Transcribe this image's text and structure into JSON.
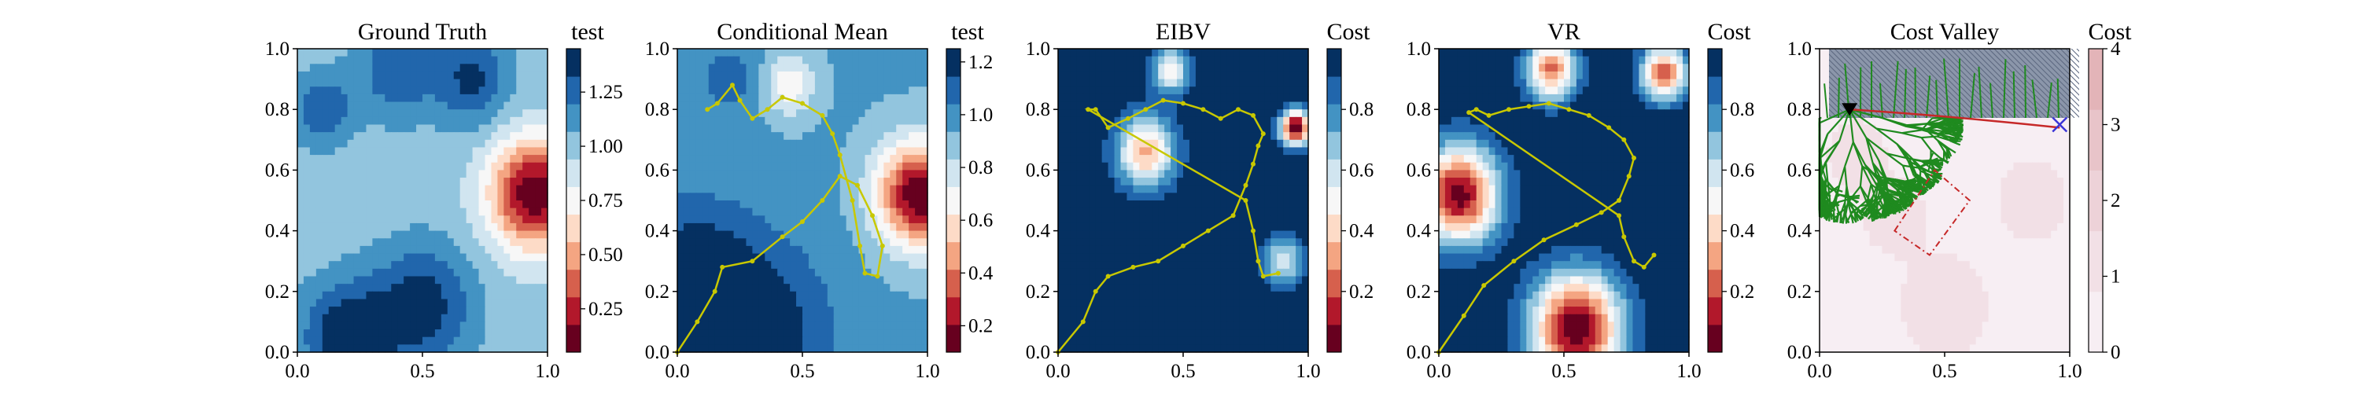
{
  "chart_data": [
    {
      "type": "heatmap",
      "title": "Ground Truth",
      "colorbar_title": "test",
      "x_ticks": [
        "0.0",
        "0.5",
        "1.0"
      ],
      "y_ticks": [
        "0.0",
        "0.2",
        "0.4",
        "0.6",
        "0.8",
        "1.0"
      ],
      "colorbar_ticks": [
        "0.25",
        "0.50",
        "0.75",
        "1.00",
        "1.25"
      ],
      "colorbar_range": [
        0.05,
        1.45
      ],
      "blobs": [
        {
          "x": 0.95,
          "y": 0.52,
          "v": 0.05,
          "r": 0.18
        },
        {
          "x": 0.4,
          "y": 0.93,
          "v": 1.3,
          "r": 0.16
        },
        {
          "x": 0.7,
          "y": 0.9,
          "v": 1.35,
          "r": 0.15
        },
        {
          "x": 0.1,
          "y": 0.8,
          "v": 1.3,
          "r": 0.12
        },
        {
          "x": 0.2,
          "y": 0.05,
          "v": 1.45,
          "r": 0.18
        },
        {
          "x": 0.5,
          "y": 0.15,
          "v": 1.4,
          "r": 0.2
        }
      ],
      "base": 1.0,
      "path": []
    },
    {
      "type": "heatmap",
      "title": "Conditional Mean",
      "colorbar_title": "test",
      "x_ticks": [
        "0.0",
        "0.5",
        "1.0"
      ],
      "y_ticks": [
        "0.0",
        "0.2",
        "0.4",
        "0.6",
        "0.8",
        "1.0"
      ],
      "colorbar_ticks": [
        "0.2",
        "0.4",
        "0.6",
        "0.8",
        "1.0",
        "1.2"
      ],
      "colorbar_range": [
        0.1,
        1.25
      ],
      "blobs": [
        {
          "x": 0.97,
          "y": 0.52,
          "v": 0.1,
          "r": 0.17
        },
        {
          "x": 0.45,
          "y": 0.88,
          "v": 0.65,
          "r": 0.1
        },
        {
          "x": 0.3,
          "y": 0.05,
          "v": 1.25,
          "r": 0.3
        },
        {
          "x": 0.05,
          "y": 0.25,
          "v": 1.2,
          "r": 0.25
        },
        {
          "x": 0.2,
          "y": 0.9,
          "v": 1.1,
          "r": 0.12
        }
      ],
      "base": 0.95,
      "path": [
        [
          0.0,
          0.0
        ],
        [
          0.08,
          0.1
        ],
        [
          0.15,
          0.2
        ],
        [
          0.18,
          0.28
        ],
        [
          0.3,
          0.3
        ],
        [
          0.42,
          0.38
        ],
        [
          0.5,
          0.43
        ],
        [
          0.58,
          0.5
        ],
        [
          0.65,
          0.58
        ],
        [
          0.72,
          0.55
        ],
        [
          0.78,
          0.45
        ],
        [
          0.82,
          0.35
        ],
        [
          0.8,
          0.25
        ],
        [
          0.75,
          0.26
        ],
        [
          0.73,
          0.35
        ],
        [
          0.7,
          0.5
        ],
        [
          0.65,
          0.65
        ],
        [
          0.62,
          0.72
        ],
        [
          0.58,
          0.78
        ],
        [
          0.5,
          0.82
        ],
        [
          0.42,
          0.84
        ],
        [
          0.36,
          0.8
        ],
        [
          0.3,
          0.77
        ],
        [
          0.25,
          0.83
        ],
        [
          0.22,
          0.88
        ],
        [
          0.16,
          0.82
        ],
        [
          0.12,
          0.8
        ]
      ]
    },
    {
      "type": "heatmap",
      "title": "EIBV",
      "colorbar_title": "Cost",
      "x_ticks": [
        "0.0",
        "0.5",
        "1.0"
      ],
      "y_ticks": [
        "0.0",
        "0.2",
        "0.4",
        "0.6",
        "0.8",
        "1.0"
      ],
      "colorbar_ticks": [
        "0.2",
        "0.4",
        "0.6",
        "0.8"
      ],
      "colorbar_range": [
        0.0,
        1.0
      ],
      "blobs": [
        {
          "x": 0.35,
          "y": 0.66,
          "v": 0.35,
          "r": 0.12
        },
        {
          "x": 0.95,
          "y": 0.74,
          "v": 0.0,
          "r": 0.06
        },
        {
          "x": 0.45,
          "y": 0.93,
          "v": 0.5,
          "r": 0.08
        },
        {
          "x": 0.9,
          "y": 0.3,
          "v": 0.55,
          "r": 0.08
        }
      ],
      "base": 1.0,
      "path": [
        [
          0.0,
          0.0
        ],
        [
          0.1,
          0.1
        ],
        [
          0.15,
          0.2
        ],
        [
          0.2,
          0.25
        ],
        [
          0.3,
          0.28
        ],
        [
          0.4,
          0.3
        ],
        [
          0.5,
          0.35
        ],
        [
          0.6,
          0.4
        ],
        [
          0.7,
          0.45
        ],
        [
          0.75,
          0.55
        ],
        [
          0.78,
          0.62
        ],
        [
          0.8,
          0.68
        ],
        [
          0.82,
          0.72
        ],
        [
          0.78,
          0.78
        ],
        [
          0.72,
          0.8
        ],
        [
          0.65,
          0.77
        ],
        [
          0.58,
          0.8
        ],
        [
          0.5,
          0.82
        ],
        [
          0.42,
          0.83
        ],
        [
          0.35,
          0.8
        ],
        [
          0.28,
          0.77
        ],
        [
          0.2,
          0.74
        ],
        [
          0.15,
          0.8
        ],
        [
          0.12,
          0.8
        ],
        [
          0.75,
          0.5
        ],
        [
          0.78,
          0.4
        ],
        [
          0.8,
          0.3
        ],
        [
          0.82,
          0.25
        ],
        [
          0.88,
          0.26
        ]
      ]
    },
    {
      "type": "heatmap",
      "title": "VR",
      "colorbar_title": "Cost",
      "x_ticks": [
        "0.0",
        "0.5",
        "1.0"
      ],
      "y_ticks": [
        "0.0",
        "0.2",
        "0.4",
        "0.6",
        "0.8",
        "1.0"
      ],
      "colorbar_ticks": [
        "0.2",
        "0.4",
        "0.6",
        "0.8"
      ],
      "colorbar_range": [
        0.0,
        1.0
      ],
      "blobs": [
        {
          "x": 0.08,
          "y": 0.52,
          "v": 0.05,
          "r": 0.16
        },
        {
          "x": 0.55,
          "y": 0.08,
          "v": 0.0,
          "r": 0.18
        },
        {
          "x": 0.45,
          "y": 0.93,
          "v": 0.25,
          "r": 0.1
        },
        {
          "x": 0.9,
          "y": 0.92,
          "v": 0.2,
          "r": 0.09
        }
      ],
      "base": 1.0,
      "path": [
        [
          0.0,
          0.0
        ],
        [
          0.1,
          0.12
        ],
        [
          0.18,
          0.22
        ],
        [
          0.3,
          0.3
        ],
        [
          0.42,
          0.37
        ],
        [
          0.55,
          0.42
        ],
        [
          0.65,
          0.46
        ],
        [
          0.72,
          0.5
        ],
        [
          0.76,
          0.58
        ],
        [
          0.78,
          0.64
        ],
        [
          0.74,
          0.7
        ],
        [
          0.68,
          0.74
        ],
        [
          0.6,
          0.78
        ],
        [
          0.52,
          0.8
        ],
        [
          0.44,
          0.82
        ],
        [
          0.36,
          0.81
        ],
        [
          0.28,
          0.8
        ],
        [
          0.2,
          0.78
        ],
        [
          0.15,
          0.8
        ],
        [
          0.12,
          0.79
        ],
        [
          0.72,
          0.45
        ],
        [
          0.74,
          0.38
        ],
        [
          0.78,
          0.3
        ],
        [
          0.82,
          0.28
        ],
        [
          0.86,
          0.32
        ]
      ]
    },
    {
      "type": "heatmap",
      "title": "Cost Valley",
      "colorbar_title": "Cost",
      "x_ticks": [
        "0.0",
        "0.5",
        "1.0"
      ],
      "y_ticks": [
        "0.0",
        "0.2",
        "0.4",
        "0.6",
        "0.8",
        "1.0"
      ],
      "colorbar_ticks": [
        "0",
        "1",
        "2",
        "3",
        "4"
      ],
      "colorbar_range": [
        0.0,
        4.0
      ],
      "blobs": [
        {
          "x": 0.5,
          "y": 0.15,
          "v": 1.6,
          "r": 0.15
        },
        {
          "x": 0.3,
          "y": 0.45,
          "v": 1.4,
          "r": 0.12
        },
        {
          "x": 0.15,
          "y": 0.65,
          "v": 1.6,
          "r": 0.1
        },
        {
          "x": 0.85,
          "y": 0.5,
          "v": 1.5,
          "r": 0.12
        }
      ],
      "base": 0.5,
      "path": []
    }
  ]
}
